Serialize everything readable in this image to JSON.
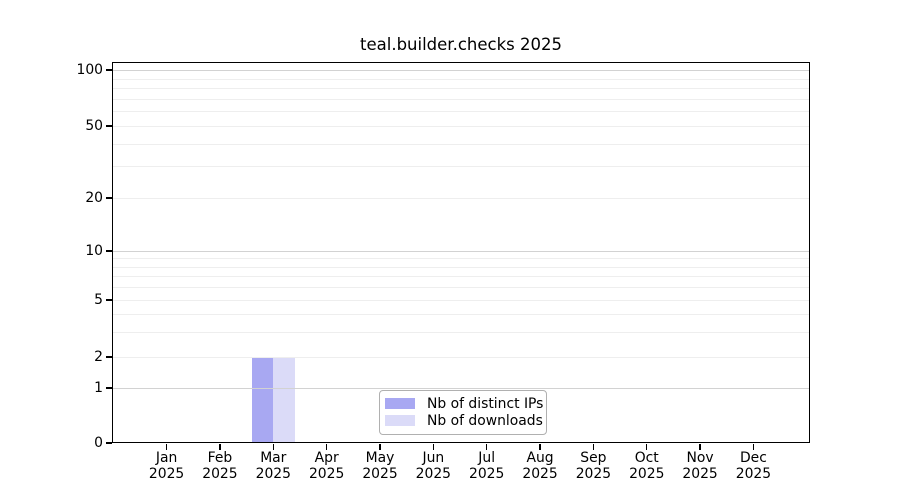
{
  "chart_title": "teal.builder.checks 2025",
  "chart_data": {
    "type": "bar",
    "title": "teal.builder.checks 2025",
    "x_months": [
      "Jan",
      "Feb",
      "Mar",
      "Apr",
      "May",
      "Jun",
      "Jul",
      "Aug",
      "Sep",
      "Oct",
      "Nov",
      "Dec"
    ],
    "x_year": "2025",
    "series": [
      {
        "name": "Nb of distinct IPs",
        "color": "#a8a8f2",
        "values": [
          0,
          0,
          2,
          0,
          0,
          0,
          0,
          0,
          0,
          0,
          0,
          0
        ]
      },
      {
        "name": "Nb of downloads",
        "color": "#dbdbf8",
        "values": [
          0,
          0,
          2,
          0,
          0,
          0,
          0,
          0,
          0,
          0,
          0,
          0
        ]
      }
    ],
    "y_scale": "log above 1, zero at baseline",
    "y_ticks": [
      100,
      50,
      20,
      10,
      5,
      2,
      1,
      0
    ],
    "y_major_grid_ticks": [
      100,
      10,
      1
    ],
    "y_minor_ticks": [
      90,
      80,
      70,
      60,
      40,
      30,
      9,
      8,
      7,
      6,
      4,
      3
    ],
    "ylim": [
      0,
      110
    ],
    "grid": "horizontal",
    "legend_position": "lower center, inside axes"
  },
  "legend": {
    "items": [
      {
        "label": "Nb of distinct IPs",
        "color": "#a8a8f2"
      },
      {
        "label": "Nb of downloads",
        "color": "#dbdbf8"
      }
    ]
  },
  "colors": {
    "bar_distinct_ips": "#a8a8f2",
    "bar_downloads": "#dbdbf8",
    "grid_major": "#d2d2d2",
    "grid_minor": "#eeeeee",
    "spine": "#000000",
    "legend_border": "#b0b0b0",
    "background": "#ffffff"
  }
}
